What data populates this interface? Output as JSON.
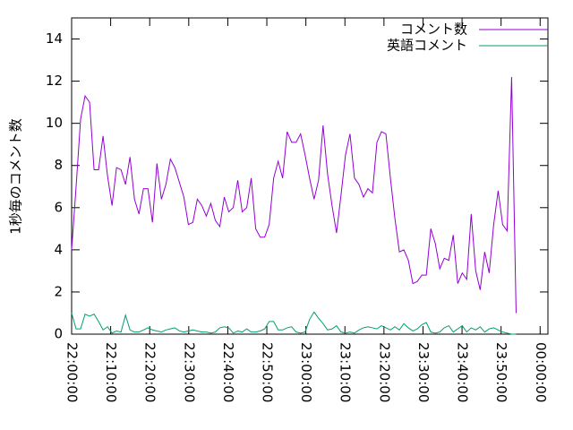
{
  "chart_data": {
    "type": "line",
    "ylabel": "1秒毎のコメント数",
    "x": [
      "22:00:00",
      "22:01:09",
      "22:02:18",
      "22:03:27",
      "22:04:36",
      "22:05:45",
      "22:06:54",
      "22:08:03",
      "22:09:12",
      "22:10:21",
      "22:11:30",
      "22:12:39",
      "22:13:48",
      "22:14:57",
      "22:16:06",
      "22:17:15",
      "22:18:24",
      "22:19:33",
      "22:20:42",
      "22:21:51",
      "22:23:00",
      "22:24:09",
      "22:25:18",
      "22:26:27",
      "22:27:36",
      "22:28:45",
      "22:29:54",
      "22:31:03",
      "22:32:12",
      "22:33:21",
      "22:34:30",
      "22:35:39",
      "22:36:48",
      "22:37:57",
      "22:39:06",
      "22:40:15",
      "22:41:24",
      "22:42:33",
      "22:43:42",
      "22:44:51",
      "22:46:00",
      "22:47:09",
      "22:48:18",
      "22:49:27",
      "22:50:36",
      "22:51:45",
      "22:52:54",
      "22:54:03",
      "22:55:12",
      "22:56:21",
      "22:57:30",
      "22:58:39",
      "22:59:48",
      "23:00:57",
      "23:02:06",
      "23:03:15",
      "23:04:24",
      "23:05:33",
      "23:06:42",
      "23:07:51",
      "23:09:00",
      "23:10:09",
      "23:11:18",
      "23:12:27",
      "23:13:36",
      "23:14:45",
      "23:15:54",
      "23:17:03",
      "23:18:12",
      "23:19:21",
      "23:20:30",
      "23:21:39",
      "23:22:48",
      "23:23:57",
      "23:25:06",
      "23:26:15",
      "23:27:24",
      "23:28:33",
      "23:29:42",
      "23:30:51",
      "23:32:00",
      "23:33:09",
      "23:34:18",
      "23:35:27",
      "23:36:36",
      "23:37:45",
      "23:38:54",
      "23:40:03",
      "23:41:12",
      "23:42:21",
      "23:43:30",
      "23:44:39",
      "23:45:48",
      "23:46:57",
      "23:48:06",
      "23:49:15",
      "23:50:24",
      "23:51:33",
      "23:52:42",
      "23:53:51"
    ],
    "series": [
      {
        "name": "コメント数",
        "color": "#9400d3",
        "values": [
          4.0,
          7.0,
          10.2,
          11.3,
          11.0,
          7.8,
          7.8,
          9.4,
          7.5,
          6.1,
          7.9,
          7.8,
          7.1,
          8.4,
          6.4,
          5.7,
          6.9,
          6.9,
          5.3,
          8.1,
          6.4,
          7.1,
          8.3,
          7.9,
          7.2,
          6.5,
          5.2,
          5.3,
          6.4,
          6.1,
          5.6,
          6.2,
          5.4,
          5.1,
          6.5,
          5.8,
          6.0,
          7.3,
          5.8,
          6.0,
          7.4,
          5.0,
          4.6,
          4.6,
          5.2,
          7.4,
          8.2,
          7.4,
          9.6,
          9.1,
          9.1,
          9.5,
          8.5,
          7.4,
          6.4,
          7.3,
          9.9,
          7.6,
          6.1,
          4.8,
          6.6,
          8.5,
          9.5,
          7.4,
          7.1,
          6.5,
          6.9,
          6.7,
          9.1,
          9.6,
          9.5,
          7.4,
          5.5,
          3.9,
          4.0,
          3.5,
          2.4,
          2.5,
          2.8,
          2.8,
          5.0,
          4.3,
          3.1,
          3.6,
          3.5,
          4.7,
          2.4,
          2.9,
          2.6,
          5.7,
          3.0,
          2.1,
          3.9,
          2.9,
          5.2,
          6.8,
          5.2,
          4.9,
          12.2,
          1.0
        ]
      },
      {
        "name": "英語コメント",
        "color": "#009e73",
        "values": [
          1.0,
          0.25,
          0.25,
          0.95,
          0.85,
          0.95,
          0.6,
          0.2,
          0.35,
          0.05,
          0.15,
          0.1,
          0.9,
          0.2,
          0.1,
          0.1,
          0.2,
          0.3,
          0.2,
          0.15,
          0.1,
          0.2,
          0.25,
          0.3,
          0.15,
          0.1,
          0.15,
          0.2,
          0.15,
          0.1,
          0.1,
          0.05,
          0.1,
          0.3,
          0.35,
          0.3,
          0.05,
          0.15,
          0.1,
          0.25,
          0.1,
          0.1,
          0.15,
          0.25,
          0.6,
          0.6,
          0.2,
          0.2,
          0.3,
          0.35,
          0.1,
          0.05,
          0.1,
          0.7,
          1.05,
          0.75,
          0.5,
          0.2,
          0.25,
          0.4,
          0.1,
          0.05,
          0.1,
          0.05,
          0.2,
          0.3,
          0.35,
          0.3,
          0.25,
          0.4,
          0.3,
          0.2,
          0.35,
          0.2,
          0.5,
          0.3,
          0.15,
          0.25,
          0.45,
          0.55,
          0.1,
          0.05,
          0.1,
          0.3,
          0.4,
          0.1,
          0.25,
          0.4,
          0.1,
          0.3,
          0.2,
          0.35,
          0.1,
          0.25,
          0.3,
          0.2,
          0.1,
          0.05,
          0.0,
          0.0
        ]
      }
    ],
    "xlim": [
      "22:00:00",
      "00:02:00"
    ],
    "xticks": [
      "22:00:00",
      "22:10:00",
      "22:20:00",
      "22:30:00",
      "22:40:00",
      "22:50:00",
      "23:00:00",
      "23:10:00",
      "23:20:00",
      "23:30:00",
      "23:40:00",
      "23:50:00",
      "00:00:00"
    ],
    "ylim": [
      0,
      15
    ],
    "yticks": [
      0,
      2,
      4,
      6,
      8,
      10,
      12,
      14
    ],
    "legend": "top-right"
  }
}
